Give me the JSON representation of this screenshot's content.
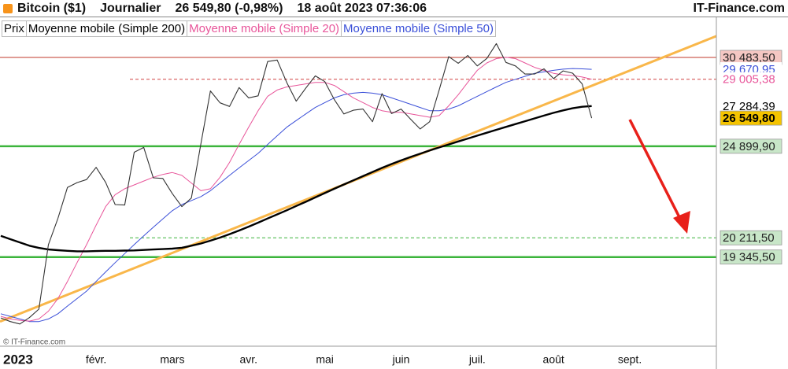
{
  "chart_data": {
    "type": "line",
    "header": {
      "instrument": "Bitcoin ($1)",
      "period": "Journalier",
      "quote": "26 549,80 (-0,98%)",
      "datetime": "18 août 2023 07:36:06",
      "source": "IT-Finance.com"
    },
    "watermark": "© IT-Finance.com",
    "log_scale": true,
    "ylim": [
      15790,
      33400
    ],
    "categories": [
      null,
      null,
      "2023",
      null,
      null,
      null,
      null,
      null,
      null,
      null,
      "févr.",
      null,
      null,
      null,
      null,
      null,
      null,
      null,
      "mars",
      null,
      null,
      null,
      null,
      null,
      null,
      null,
      "avr.",
      null,
      null,
      null,
      null,
      null,
      null,
      null,
      "mai",
      null,
      null,
      null,
      null,
      null,
      null,
      null,
      "juin",
      null,
      null,
      null,
      null,
      null,
      null,
      null,
      "juil.",
      null,
      null,
      null,
      null,
      null,
      null,
      null,
      "août",
      null,
      null,
      null,
      null,
      null,
      null,
      null,
      "sept.",
      null,
      null,
      null,
      null,
      null,
      null,
      null,
      null,
      null
    ],
    "series": [
      {
        "name": "Prix",
        "color": "#333333",
        "values": [
          16840,
          16700,
          16610,
          16850,
          17180,
          19900,
          21130,
          22670,
          22920,
          23080,
          23730,
          22930,
          21800,
          21780,
          24560,
          24830,
          23170,
          23140,
          22350,
          21700,
          22130,
          25040,
          28240,
          27490,
          27260,
          28460,
          27800,
          27930,
          30200,
          30300,
          28800,
          27590,
          28420,
          29230,
          28850,
          27690,
          26800,
          27030,
          27100,
          26330,
          28070,
          26820,
          27100,
          26480,
          25900,
          26330,
          28310,
          30540,
          30080,
          30620,
          29900,
          30410,
          31460,
          30140,
          29900,
          29350,
          29350,
          29700,
          29050,
          29560,
          29410,
          28700,
          26549.8,
          null,
          null,
          null,
          null,
          null,
          null,
          null,
          null,
          null,
          null,
          null,
          null,
          null
        ]
      },
      {
        "name": "Moyenne mobile (Simple 200)",
        "color": "#000000",
        "values": [
          20300,
          20150,
          20000,
          19850,
          19750,
          19680,
          19650,
          19620,
          19600,
          19600,
          19610,
          19620,
          19620,
          19630,
          19640,
          19660,
          19680,
          19700,
          19720,
          19760,
          19850,
          19950,
          20080,
          20220,
          20380,
          20550,
          20730,
          20920,
          21120,
          21320,
          21520,
          21730,
          21940,
          22160,
          22380,
          22600,
          22820,
          23040,
          23260,
          23480,
          23700,
          23910,
          24110,
          24300,
          24480,
          24660,
          24830,
          25000,
          25170,
          25340,
          25510,
          25680,
          25850,
          26020,
          26190,
          26360,
          26530,
          26700,
          26870,
          27020,
          27150,
          27240,
          27284.39,
          null,
          null,
          null,
          null,
          null,
          null,
          null,
          null,
          null,
          null,
          null,
          null,
          null
        ]
      },
      {
        "name": "Moyenne mobile (Simple 20)",
        "color": "#e8559a",
        "values": [
          16900,
          16800,
          16750,
          16720,
          16800,
          17100,
          17600,
          18300,
          19100,
          19900,
          20800,
          21700,
          22300,
          22600,
          22800,
          23000,
          23200,
          23350,
          23450,
          23300,
          22900,
          22500,
          22600,
          23200,
          24000,
          25000,
          26000,
          27000,
          27900,
          28300,
          28500,
          28600,
          28700,
          28800,
          28800,
          28600,
          28200,
          27800,
          27500,
          27200,
          27000,
          26900,
          26900,
          26800,
          26700,
          26600,
          26700,
          27300,
          28000,
          28800,
          29600,
          30100,
          30400,
          30500,
          30400,
          30100,
          29800,
          29600,
          29400,
          29300,
          29250,
          29150,
          29005.38,
          null,
          null,
          null,
          null,
          null,
          null,
          null,
          null,
          null,
          null,
          null,
          null,
          null
        ]
      },
      {
        "name": "Moyenne mobile (Simple 50)",
        "color": "#3a4fd8",
        "values": [
          17000,
          16900,
          16800,
          16700,
          16700,
          16800,
          17000,
          17300,
          17600,
          17900,
          18300,
          18700,
          19100,
          19500,
          19900,
          20300,
          20700,
          21100,
          21500,
          21800,
          22000,
          22200,
          22500,
          22900,
          23300,
          23700,
          24100,
          24500,
          25000,
          25500,
          26000,
          26400,
          26800,
          27200,
          27500,
          27800,
          28000,
          28100,
          28150,
          28100,
          28000,
          27800,
          27600,
          27400,
          27200,
          27000,
          27000,
          27100,
          27300,
          27600,
          27900,
          28200,
          28500,
          28800,
          29000,
          29200,
          29400,
          29500,
          29600,
          29680,
          29720,
          29700,
          29670.95,
          null,
          null,
          null,
          null,
          null,
          null,
          null,
          null,
          null,
          null,
          null,
          null,
          null
        ]
      }
    ],
    "trend_line": {
      "color": "#f9b74a",
      "left_value": 16700,
      "right_value": 32000
    },
    "levels": [
      {
        "value": 30483.5,
        "label": "30 483,50",
        "line": "solid",
        "line_color": "#c0392b",
        "label_color": "#222222",
        "label_background": "#f4c7c3"
      },
      {
        "value": 29670.95,
        "label": "29 670,95",
        "line": "none",
        "line_color": "#3a4fd8",
        "label_color": "#3a4fd8",
        "label_background": "#ffffff"
      },
      {
        "value": 29005.38,
        "label": "29 005,38",
        "line": "dashed",
        "line_color": "#d04040",
        "label_color": "#e8559a",
        "label_background": "#ffffff"
      },
      {
        "value": 27284.39,
        "label": "27 284,39",
        "line": "none",
        "line_color": "#000000",
        "label_color": "#000000",
        "label_background": "#ffffff"
      },
      {
        "value": 26549.8,
        "label": "26 549,80",
        "line": "none",
        "line_color": "#000000",
        "label_color": "#000000",
        "label_background": "#f5c400"
      },
      {
        "value": 24899.9,
        "label": "24 899,90",
        "line": "thick",
        "line_color": "#3cb43c",
        "label_color": "#222222",
        "label_background": "#c8e6c8"
      },
      {
        "value": 20211.5,
        "label": "20 211,50",
        "line": "dashed",
        "line_color": "#3cb43c",
        "label_color": "#222222",
        "label_background": "#c8e6c8"
      },
      {
        "value": 19345.5,
        "label": "19 345,50",
        "line": "thick",
        "line_color": "#3cb43c",
        "label_color": "#222222",
        "label_background": "#c8e6c8"
      }
    ]
  }
}
